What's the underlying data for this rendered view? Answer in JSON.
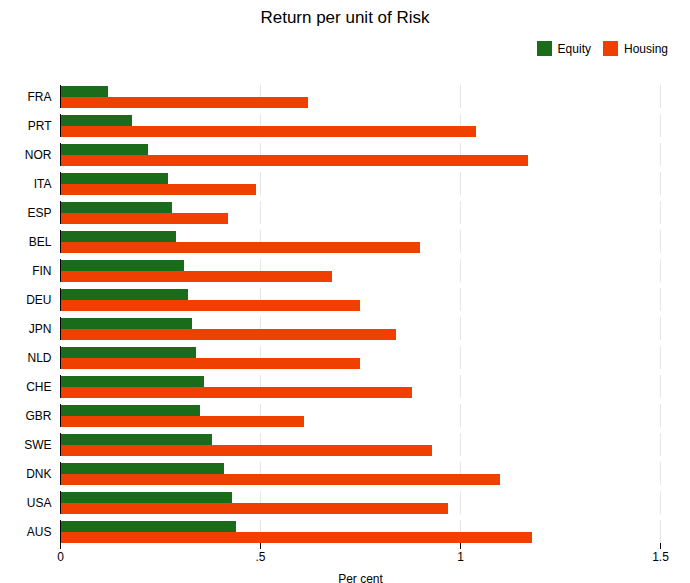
{
  "chart_data": {
    "type": "bar",
    "orientation": "horizontal",
    "title": "Return per unit of Risk",
    "xlabel": "Per cent",
    "categories": [
      "FRA",
      "PRT",
      "NOR",
      "ITA",
      "ESP",
      "BEL",
      "FIN",
      "DEU",
      "JPN",
      "NLD",
      "CHE",
      "GBR",
      "SWE",
      "DNK",
      "USA",
      "AUS"
    ],
    "series": [
      {
        "name": "Equity",
        "color": "#1a6b1a",
        "values": [
          0.12,
          0.18,
          0.22,
          0.27,
          0.28,
          0.29,
          0.31,
          0.32,
          0.33,
          0.34,
          0.36,
          0.35,
          0.38,
          0.41,
          0.43,
          0.44
        ]
      },
      {
        "name": "Housing",
        "color": "#f04000",
        "values": [
          0.62,
          1.04,
          1.17,
          0.49,
          0.42,
          0.9,
          0.68,
          0.75,
          0.84,
          0.75,
          0.88,
          0.61,
          0.93,
          1.1,
          0.97,
          1.18
        ]
      }
    ],
    "xlim": [
      0,
      1.5
    ],
    "xticks": [
      0,
      {
        "value": 0.5,
        "label": ".5"
      },
      1,
      1.5
    ],
    "grid": true,
    "legend": "upper right"
  }
}
